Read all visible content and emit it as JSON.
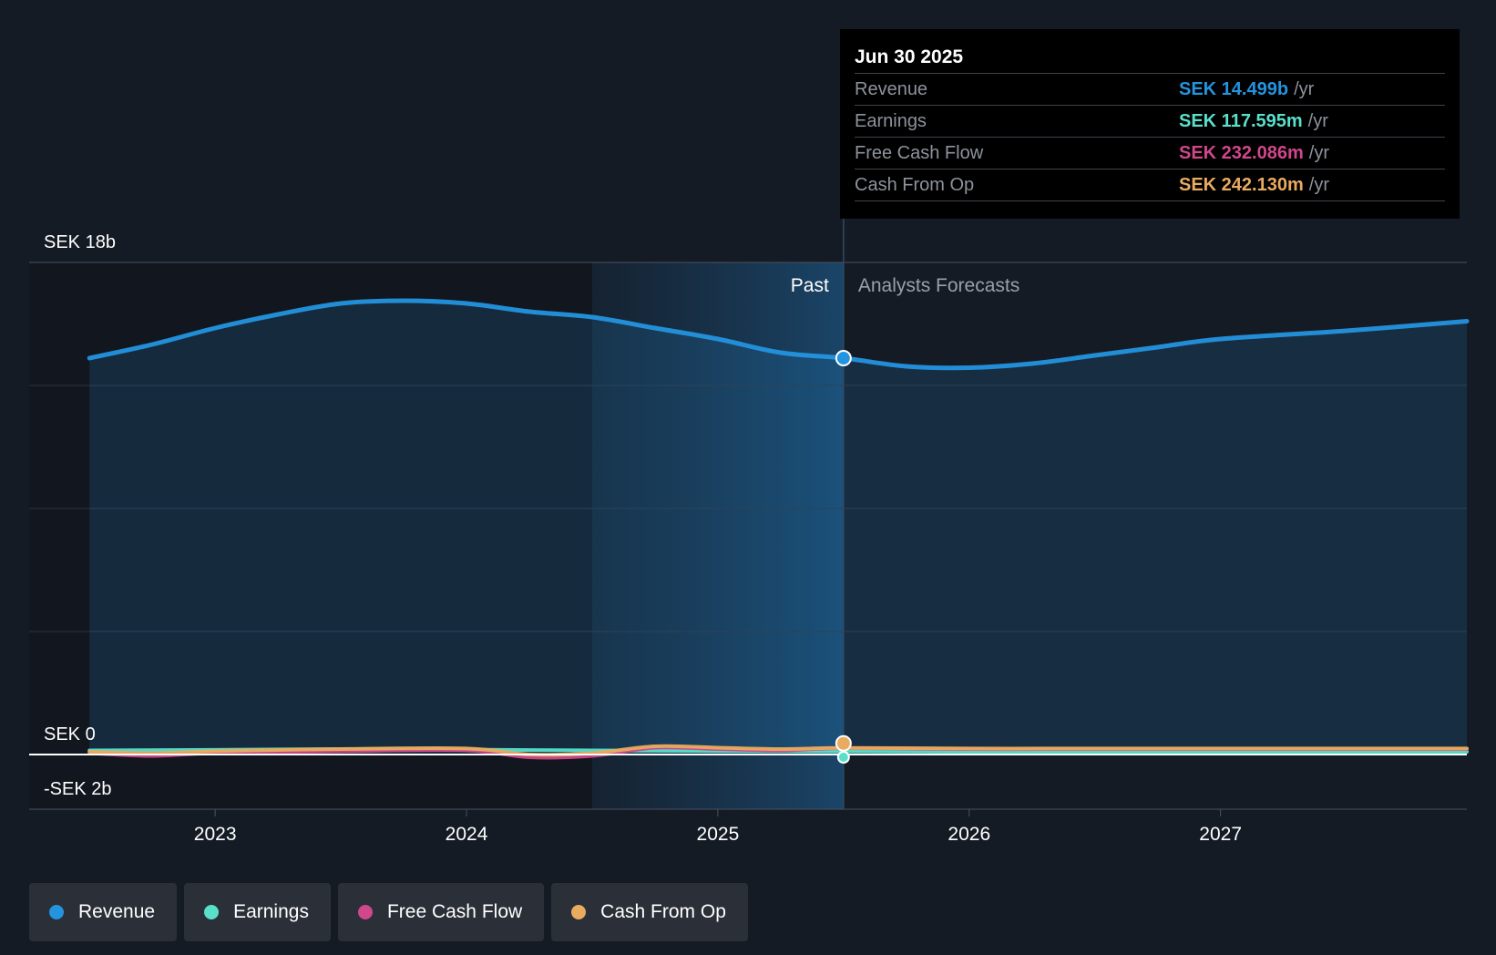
{
  "chart_data": {
    "type": "area",
    "x_unit": "year",
    "y_unit": "SEK billions",
    "ylim": [
      -2,
      18
    ],
    "xlim": [
      2022.26,
      2027.98
    ],
    "y_tick_labels": [
      {
        "value": 18,
        "label": "SEK 18b"
      },
      {
        "value": 0,
        "label": "SEK 0"
      },
      {
        "value": -2,
        "label": "-SEK 2b"
      }
    ],
    "x_ticks": [
      {
        "value": 2023,
        "label": "2023"
      },
      {
        "value": 2024,
        "label": "2024"
      },
      {
        "value": 2025,
        "label": "2025"
      },
      {
        "value": 2026,
        "label": "2026"
      },
      {
        "value": 2027,
        "label": "2027"
      }
    ],
    "grid": true,
    "divider_x": 2025.5,
    "highlight_start": 2024.5,
    "past_label": "Past",
    "forecast_label": "Analysts Forecasts",
    "series": [
      {
        "name": "Revenue",
        "color": "#2394df",
        "area": true,
        "points": [
          [
            2022.5,
            14.5
          ],
          [
            2022.75,
            15.0
          ],
          [
            2023.0,
            15.6
          ],
          [
            2023.25,
            16.1
          ],
          [
            2023.5,
            16.5
          ],
          [
            2023.75,
            16.6
          ],
          [
            2024.0,
            16.5
          ],
          [
            2024.25,
            16.2
          ],
          [
            2024.5,
            16.0
          ],
          [
            2024.75,
            15.6
          ],
          [
            2025.0,
            15.2
          ],
          [
            2025.25,
            14.7
          ],
          [
            2025.5,
            14.499
          ],
          [
            2025.75,
            14.2
          ],
          [
            2026.0,
            14.15
          ],
          [
            2026.25,
            14.3
          ],
          [
            2026.5,
            14.6
          ],
          [
            2026.75,
            14.9
          ],
          [
            2027.0,
            15.2
          ],
          [
            2027.5,
            15.5
          ],
          [
            2027.98,
            15.85
          ]
        ]
      },
      {
        "name": "Earnings",
        "color": "#59e0cb",
        "area": false,
        "points": [
          [
            2022.5,
            0.15
          ],
          [
            2023.0,
            0.17
          ],
          [
            2023.5,
            0.2
          ],
          [
            2024.0,
            0.18
          ],
          [
            2024.5,
            0.15
          ],
          [
            2025.0,
            0.13
          ],
          [
            2025.5,
            0.118
          ],
          [
            2026.0,
            0.1
          ],
          [
            2026.5,
            0.1
          ],
          [
            2027.0,
            0.1
          ],
          [
            2027.98,
            0.1
          ]
        ]
      },
      {
        "name": "Free Cash Flow",
        "color": "#d0478c",
        "area": false,
        "points": [
          [
            2022.5,
            0.05
          ],
          [
            2022.75,
            -0.05
          ],
          [
            2023.0,
            0.05
          ],
          [
            2023.5,
            0.12
          ],
          [
            2024.0,
            0.15
          ],
          [
            2024.25,
            -0.1
          ],
          [
            2024.5,
            -0.05
          ],
          [
            2024.75,
            0.25
          ],
          [
            2025.0,
            0.2
          ],
          [
            2025.25,
            0.15
          ],
          [
            2025.5,
            0.232
          ],
          [
            2026.0,
            0.2
          ],
          [
            2026.5,
            0.2
          ],
          [
            2027.0,
            0.2
          ],
          [
            2027.98,
            0.2
          ]
        ]
      },
      {
        "name": "Cash From Op",
        "color": "#e9ab5f",
        "area": false,
        "points": [
          [
            2022.5,
            0.1
          ],
          [
            2022.75,
            0.05
          ],
          [
            2023.0,
            0.12
          ],
          [
            2023.5,
            0.2
          ],
          [
            2024.0,
            0.22
          ],
          [
            2024.25,
            0.0
          ],
          [
            2024.5,
            0.05
          ],
          [
            2024.75,
            0.3
          ],
          [
            2025.0,
            0.25
          ],
          [
            2025.25,
            0.2
          ],
          [
            2025.5,
            0.242
          ],
          [
            2026.0,
            0.22
          ],
          [
            2026.5,
            0.22
          ],
          [
            2027.0,
            0.22
          ],
          [
            2027.98,
            0.22
          ]
        ]
      }
    ],
    "marker_x": 2025.5
  },
  "tooltip": {
    "date": "Jun 30 2025",
    "rows": [
      {
        "label": "Revenue",
        "value": "SEK 14.499b",
        "unit": "/yr",
        "color": "#2394df"
      },
      {
        "label": "Earnings",
        "value": "SEK 117.595m",
        "unit": "/yr",
        "color": "#59e0cb"
      },
      {
        "label": "Free Cash Flow",
        "value": "SEK 232.086m",
        "unit": "/yr",
        "color": "#d0478c"
      },
      {
        "label": "Cash From Op",
        "value": "SEK 242.130m",
        "unit": "/yr",
        "color": "#e9ab5f"
      }
    ]
  },
  "legend": [
    {
      "label": "Revenue",
      "color": "#2394df"
    },
    {
      "label": "Earnings",
      "color": "#59e0cb"
    },
    {
      "label": "Free Cash Flow",
      "color": "#d0478c"
    },
    {
      "label": "Cash From Op",
      "color": "#e9ab5f"
    }
  ]
}
